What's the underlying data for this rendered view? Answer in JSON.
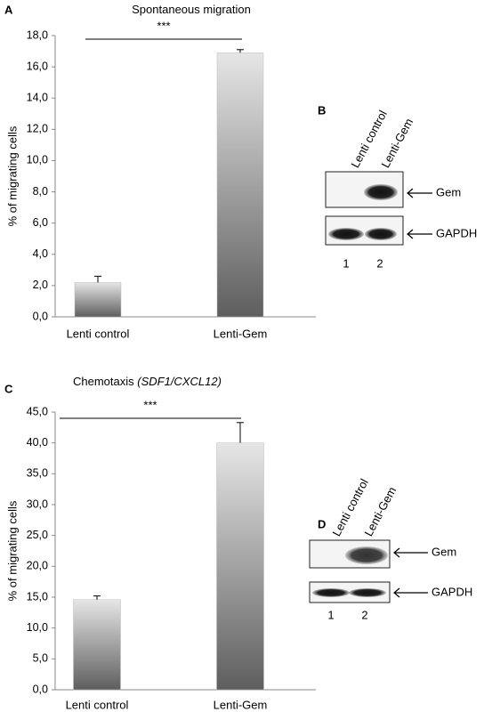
{
  "chart_data": [
    {
      "type": "bar",
      "panel": "A",
      "title": "Spontaneous migration",
      "y_label": "% of migrating cells",
      "categories": [
        "Lenti control",
        "Lenti-Gem"
      ],
      "values": [
        2.2,
        16.9
      ],
      "errors": [
        0.4,
        0.2
      ],
      "ylim": [
        0,
        18
      ],
      "yticks": [
        {
          "value": 0,
          "label": "0,0"
        },
        {
          "value": 2,
          "label": "2,0"
        },
        {
          "value": 4,
          "label": "4,0"
        },
        {
          "value": 6,
          "label": "6,0"
        },
        {
          "value": 8,
          "label": "8,0"
        },
        {
          "value": 10,
          "label": "10,0"
        },
        {
          "value": 12,
          "label": "12,0"
        },
        {
          "value": 14,
          "label": "14,0"
        },
        {
          "value": 16,
          "label": "16,0"
        },
        {
          "value": 18,
          "label": "18,0"
        }
      ],
      "annotation": "***",
      "grid": false
    },
    {
      "type": "bar",
      "panel": "C",
      "title": "Chemotaxis",
      "title_detail": "(SDF1/CXCL12)",
      "y_label": "% of migrating cells",
      "categories": [
        "Lenti control",
        "Lenti-Gem"
      ],
      "values": [
        14.6,
        40.0
      ],
      "errors": [
        0.6,
        3.3
      ],
      "ylim": [
        0,
        45
      ],
      "yticks": [
        {
          "value": 0,
          "label": "0,0"
        },
        {
          "value": 5,
          "label": "5,0"
        },
        {
          "value": 10,
          "label": "10,0"
        },
        {
          "value": 15,
          "label": "15,0"
        },
        {
          "value": 20,
          "label": "20,0"
        },
        {
          "value": 25,
          "label": "25,0"
        },
        {
          "value": 30,
          "label": "30,0"
        },
        {
          "value": 35,
          "label": "35,0"
        },
        {
          "value": 40,
          "label": "40,0"
        },
        {
          "value": 45,
          "label": "45,0"
        }
      ],
      "annotation": "***",
      "grid": false
    }
  ],
  "blots": [
    {
      "panel": "B",
      "lanes": [
        "Lenti control",
        "Lenti-Gem"
      ],
      "lane_numbers": [
        "1",
        "2"
      ],
      "bands": [
        "Gem",
        "GAPDH"
      ]
    },
    {
      "panel": "D",
      "lanes": [
        "Lenti control",
        "Lenti-Gem"
      ],
      "lane_numbers": [
        "1",
        "2"
      ],
      "bands": [
        "Gem",
        "GAPDH"
      ]
    }
  ]
}
